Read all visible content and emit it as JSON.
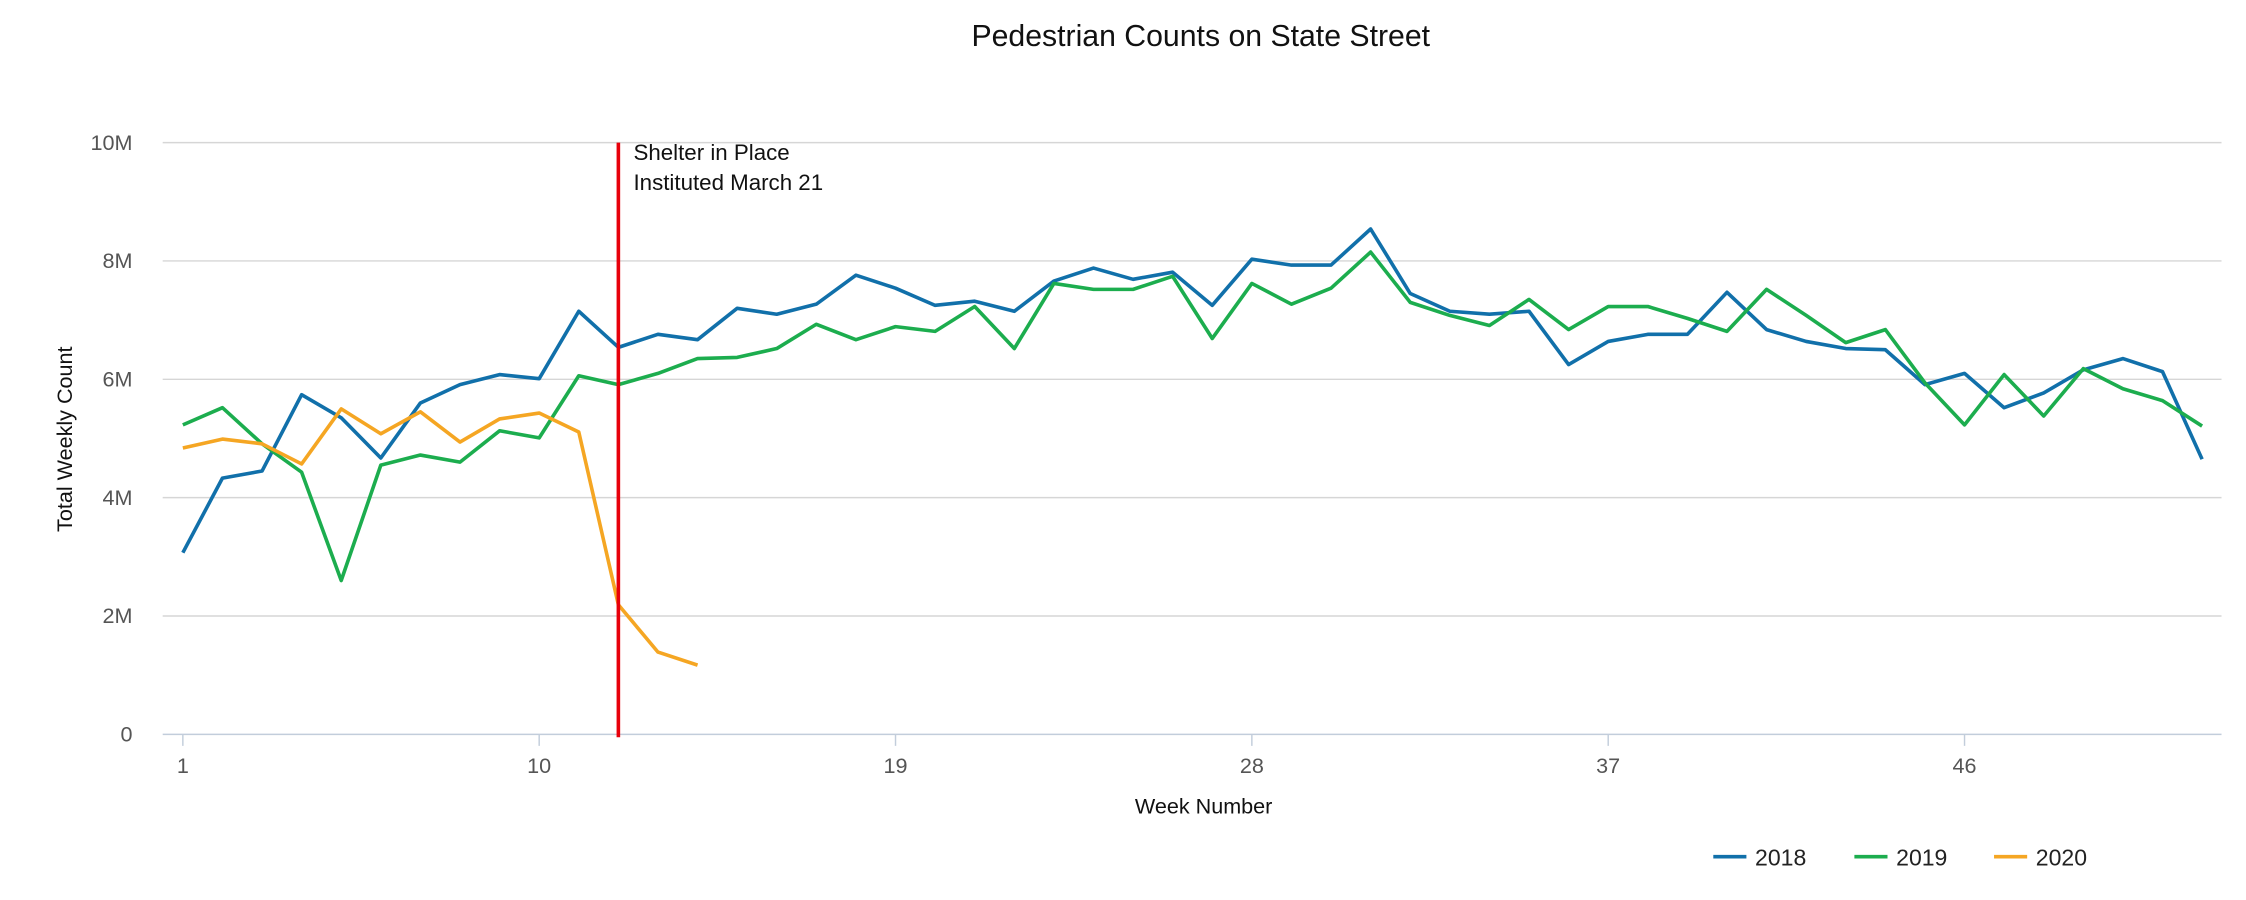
{
  "chart_data": {
    "type": "line",
    "title": "Pedestrian Counts on State Street",
    "xlabel": "Week Number",
    "ylabel": "Total Weekly Count",
    "xlim": [
      1,
      52
    ],
    "ylim": [
      0,
      10000000
    ],
    "x_ticks": [
      1,
      10,
      19,
      28,
      37,
      46
    ],
    "x_tick_labels": [
      "1",
      "10",
      "19",
      "28",
      "37",
      "46"
    ],
    "y_ticks": [
      0,
      2000000,
      4000000,
      6000000,
      8000000,
      10000000
    ],
    "y_tick_labels": [
      "0",
      "2M",
      "4M",
      "6M",
      "8M",
      "10M"
    ],
    "grid": "horizontal",
    "legend_position": "bottom-right",
    "annotation": {
      "x": 12,
      "lines": [
        "Shelter in Place",
        "Instituted March 21"
      ],
      "color": "#e8000b"
    },
    "series": [
      {
        "name": "2018",
        "color": "#1170aa",
        "start_week": 1,
        "values": [
          3.07,
          4.33,
          4.45,
          5.74,
          5.35,
          4.67,
          5.6,
          5.91,
          6.08,
          6.01,
          7.15,
          6.54,
          6.76,
          6.67,
          7.2,
          7.1,
          7.27,
          7.76,
          7.54,
          7.25,
          7.32,
          7.15,
          7.66,
          7.88,
          7.69,
          7.81,
          7.25,
          8.03,
          7.93,
          7.93,
          8.54,
          7.45,
          7.15,
          7.1,
          7.15,
          6.25,
          6.64,
          6.76,
          6.76,
          7.47,
          6.84,
          6.64,
          6.52,
          6.5,
          5.91,
          6.1,
          5.52,
          5.77,
          6.16,
          6.35,
          6.13,
          4.65
        ]
      },
      {
        "name": "2019",
        "color": "#1cad4e",
        "start_week": 1,
        "values": [
          5.23,
          5.52,
          4.91,
          4.43,
          2.6,
          4.55,
          4.72,
          4.6,
          5.13,
          5.01,
          6.06,
          5.91,
          6.1,
          6.35,
          6.37,
          6.52,
          6.93,
          6.67,
          6.89,
          6.81,
          7.23,
          6.52,
          7.62,
          7.52,
          7.52,
          7.74,
          6.69,
          7.62,
          7.27,
          7.54,
          8.15,
          7.3,
          7.08,
          6.91,
          7.35,
          6.84,
          7.23,
          7.23,
          7.03,
          6.81,
          7.52,
          7.08,
          6.62,
          6.84,
          5.94,
          5.23,
          6.08,
          5.38,
          6.18,
          5.84,
          5.64,
          5.21
        ]
      },
      {
        "name": "2020",
        "color": "#f5a623",
        "start_week": 1,
        "values": [
          4.84,
          4.99,
          4.91,
          4.57,
          5.5,
          5.08,
          5.45,
          4.94,
          5.33,
          5.43,
          5.11,
          2.19,
          1.39,
          1.17
        ]
      }
    ],
    "value_unit": "millions"
  }
}
